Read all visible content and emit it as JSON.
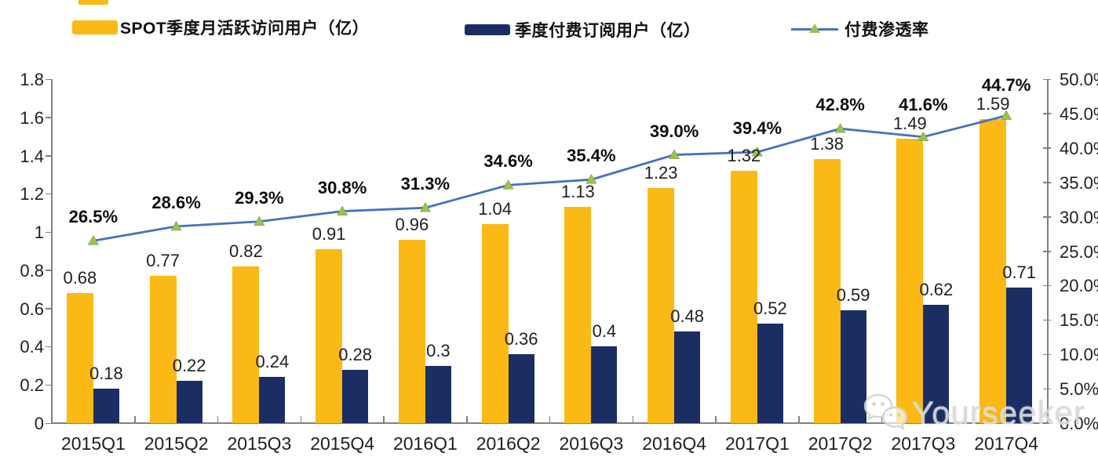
{
  "legend": {
    "items": [
      {
        "label": "SPOT季度月活跃访问用户（亿）",
        "swatch_color": "#FBB915",
        "type": "bar-swatch"
      },
      {
        "label": "季度付费订阅用户（亿）",
        "swatch_color": "#1A2E63",
        "type": "bar-swatch"
      },
      {
        "label": "付费渗透率",
        "line_color": "#4672BE",
        "marker_color": "#9DC14E",
        "type": "line-marker"
      }
    ]
  },
  "watermark": {
    "text": "Yourseeker",
    "icon": "wechat-icon"
  },
  "chart_data": {
    "type": "bar+line",
    "title": "",
    "legend_position": "top",
    "grid": false,
    "categories": [
      "2015Q1",
      "2015Q2",
      "2015Q3",
      "2015Q4",
      "2016Q1",
      "2016Q2",
      "2016Q3",
      "2016Q4",
      "2017Q1",
      "2017Q2",
      "2017Q3",
      "2017Q4"
    ],
    "series": [
      {
        "name": "SPOT季度月活跃访问用户（亿）",
        "type": "bar",
        "axis": "left",
        "color": "#FBB915",
        "values": [
          0.68,
          0.77,
          0.82,
          0.91,
          0.96,
          1.04,
          1.13,
          1.23,
          1.32,
          1.38,
          1.49,
          1.59
        ],
        "labels": [
          "0.68",
          "0.77",
          "0.82",
          "0.91",
          "0.96",
          "1.04",
          "1.13",
          "1.23",
          "1.32",
          "1.38",
          "1.49",
          "1.59"
        ]
      },
      {
        "name": "季度付费订阅用户（亿）",
        "type": "bar",
        "axis": "left",
        "color": "#1A2E63",
        "values": [
          0.18,
          0.22,
          0.24,
          0.28,
          0.3,
          0.36,
          0.4,
          0.48,
          0.52,
          0.59,
          0.62,
          0.71
        ],
        "labels": [
          "0.18",
          "0.22",
          "0.24",
          "0.28",
          "0.3",
          "0.36",
          "0.4",
          "0.48",
          "0.52",
          "0.59",
          "0.62",
          "0.71"
        ]
      },
      {
        "name": "付费渗透率",
        "type": "line",
        "axis": "right",
        "color": "#4672BE",
        "marker_color": "#9DC14E",
        "values": [
          26.5,
          28.6,
          29.3,
          30.8,
          31.3,
          34.6,
          35.4,
          39.0,
          39.4,
          42.8,
          41.6,
          44.7
        ],
        "labels": [
          "26.5%",
          "28.6%",
          "29.3%",
          "30.8%",
          "31.3%",
          "34.6%",
          "35.4%",
          "39.0%",
          "39.4%",
          "42.8%",
          "41.6%",
          "44.7%"
        ]
      }
    ],
    "left_axis": {
      "min": 0,
      "max": 1.8,
      "tick_values": [
        0,
        0.2,
        0.4,
        0.6,
        0.8,
        1,
        1.2,
        1.4,
        1.6,
        1.8
      ],
      "tick_labels": [
        "0",
        "0.2",
        "0.4",
        "0.6",
        "0.8",
        "1",
        "1.2",
        "1.4",
        "1.6",
        "1.8"
      ]
    },
    "right_axis": {
      "min": 0,
      "max": 50,
      "tick_values": [
        0,
        5,
        10,
        15,
        20,
        25,
        30,
        35,
        40,
        45,
        50
      ],
      "tick_labels": [
        "0.0%",
        "5.0%",
        "10.0%",
        "15.0%",
        "20.0%",
        "25.0%",
        "30.0%",
        "35.0%",
        "40.0%",
        "45.0%",
        "50.0%"
      ]
    }
  }
}
